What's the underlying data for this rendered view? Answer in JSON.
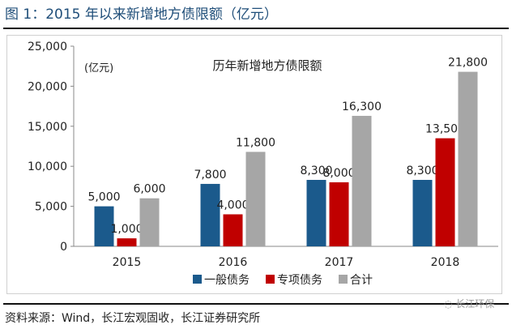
{
  "header": {
    "title": "图 1：2015 年以来新增地方债限额（亿元）"
  },
  "footer": {
    "source": "资料来源：Wind，长江宏观固收，长江证券研究所",
    "watermark": "长江环保"
  },
  "chart_data": {
    "type": "bar",
    "title": "历年新增地方债限额",
    "unit_label": "(亿元)",
    "categories": [
      "2015",
      "2016",
      "2017",
      "2018"
    ],
    "series": [
      {
        "name": "一般债务",
        "values": [
          5000,
          7800,
          8300,
          8300
        ],
        "color": "#1b5a8c"
      },
      {
        "name": "专项债务",
        "values": [
          1000,
          4000,
          8000,
          13500
        ],
        "color": "#c00000"
      },
      {
        "name": "合计",
        "values": [
          6000,
          11800,
          16300,
          21800
        ],
        "color": "#a6a6a6"
      }
    ],
    "data_labels": [
      [
        "5,000",
        "7,800",
        "8,300",
        "8,300"
      ],
      [
        "1,000",
        "4,000",
        "8,000",
        "13,500"
      ],
      [
        "6,000",
        "11,800",
        "16,300",
        "21,800"
      ]
    ],
    "ylim": [
      0,
      25000
    ],
    "yticks": [
      "0",
      "5,000",
      "10,000",
      "15,000",
      "20,000",
      "25,000"
    ],
    "grid": false,
    "legend": "bottom"
  }
}
